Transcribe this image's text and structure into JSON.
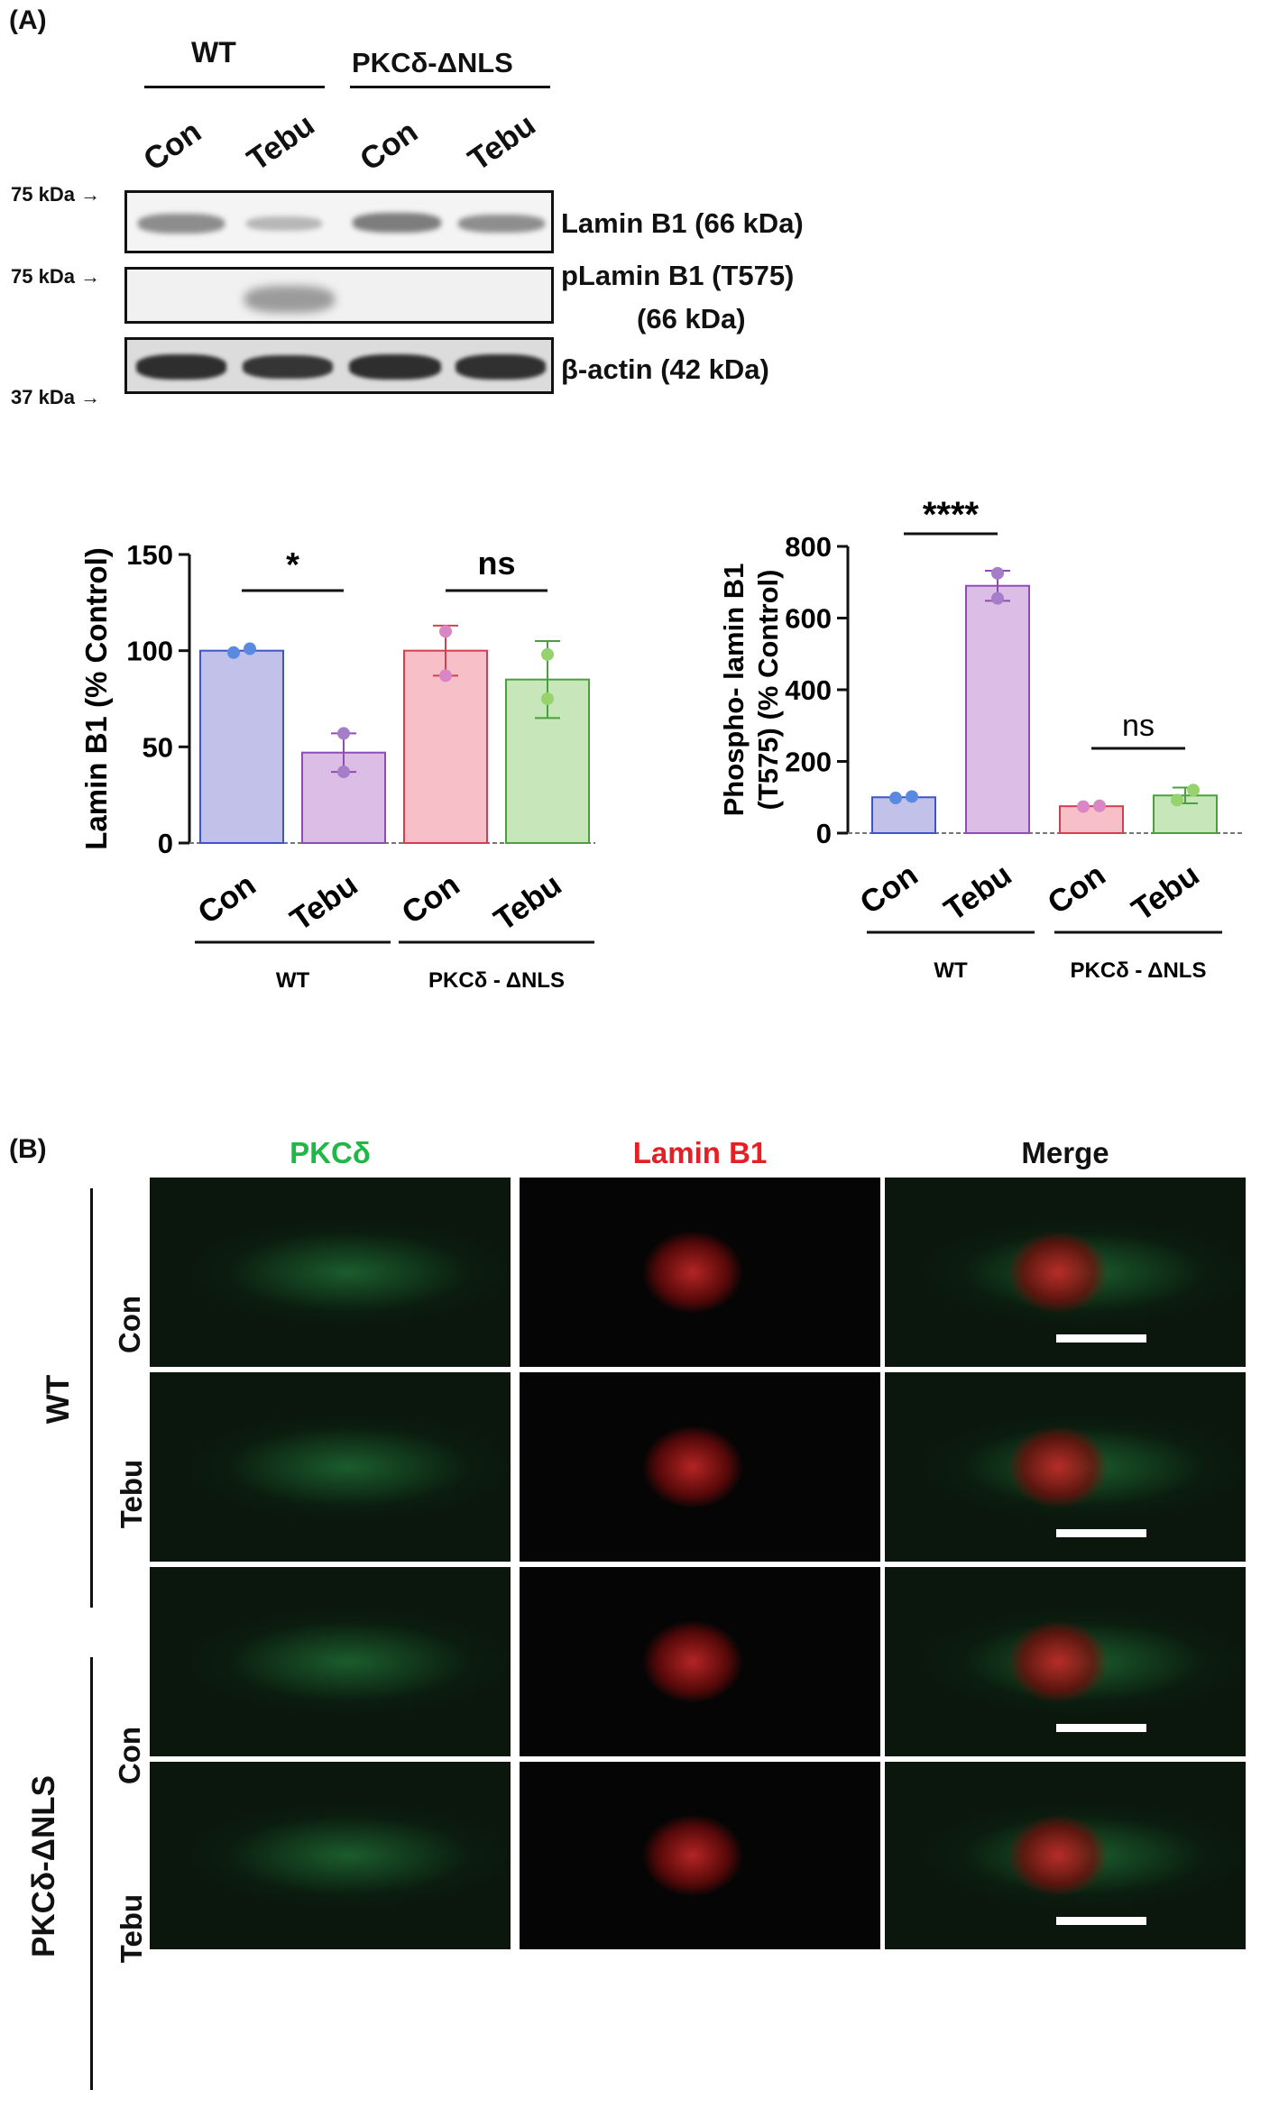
{
  "panelA": {
    "label": "(A)",
    "blot": {
      "group_wt": "WT",
      "group_mut": "PKCδ-ΔNLS",
      "lanes": [
        "Con",
        "Tebu",
        "Con",
        "Tebu"
      ],
      "markers": [
        "75 kDa",
        "75 kDa",
        "37 kDa"
      ],
      "rows": [
        {
          "label": "Lamin B1 (66 kDa)"
        },
        {
          "label_line1": "pLamin B1 (T575)",
          "label_line2": "(66 kDa)"
        },
        {
          "label": "β-actin (42 kDa)"
        }
      ]
    }
  },
  "chart_data": [
    {
      "type": "bar",
      "ylabel": "Lamin B1 (% Control)",
      "categories": [
        "Con",
        "Tebu",
        "Con",
        "Tebu"
      ],
      "groups": [
        "WT",
        "PKCδ - ΔNLS"
      ],
      "values": [
        100,
        47,
        100,
        85
      ],
      "errors": [
        0,
        10,
        13,
        20
      ],
      "points": [
        [
          99,
          101
        ],
        [
          37,
          57
        ],
        [
          87,
          110
        ],
        [
          75,
          98
        ]
      ],
      "colors": [
        "#c2c1ea",
        "#dcbde6",
        "#f7c0c9",
        "#c7e6ba"
      ],
      "edge_colors": [
        "#3c55c8",
        "#8f4cb6",
        "#d2404f",
        "#4aa03c"
      ],
      "dot_colors": [
        "#5a8ae0",
        "#a47ec9",
        "#d986c5",
        "#96d26e"
      ],
      "ylim": [
        0,
        150
      ],
      "yticks": [
        0,
        50,
        100,
        150
      ],
      "annotations": [
        "*",
        "ns"
      ]
    },
    {
      "type": "bar",
      "ylabel_line1": "Phospho- lamin B1",
      "ylabel_line2": "(T575) (% Control)",
      "categories": [
        "Con",
        "Tebu",
        "Con",
        "Tebu"
      ],
      "groups": [
        "WT",
        "PKCδ - ΔNLS"
      ],
      "values": [
        100,
        690,
        75,
        105
      ],
      "errors": [
        0,
        42,
        0,
        22
      ],
      "points": [
        [
          98,
          102
        ],
        [
          655,
          725
        ],
        [
          74,
          76
        ],
        [
          92,
          120
        ]
      ],
      "colors": [
        "#c2c1ea",
        "#dcbde6",
        "#f7c0c9",
        "#c7e6ba"
      ],
      "edge_colors": [
        "#3c55c8",
        "#8f4cb6",
        "#d2404f",
        "#4aa03c"
      ],
      "dot_colors": [
        "#5a8ae0",
        "#a47ec9",
        "#d986c5",
        "#96d26e"
      ],
      "ylim": [
        0,
        800
      ],
      "yticks": [
        0,
        200,
        400,
        600,
        800
      ],
      "annotations": [
        "****",
        "ns"
      ]
    }
  ],
  "panelB": {
    "label": "(B)",
    "columns": [
      "PKCδ",
      "Lamin B1",
      "Merge"
    ],
    "column_colors": [
      "#1db847",
      "#e52025",
      "#111111"
    ],
    "groups": [
      "WT",
      "PKCδ-ΔNLS"
    ],
    "rows": [
      "Con",
      "Tebu",
      "Con",
      "Tebu"
    ]
  }
}
